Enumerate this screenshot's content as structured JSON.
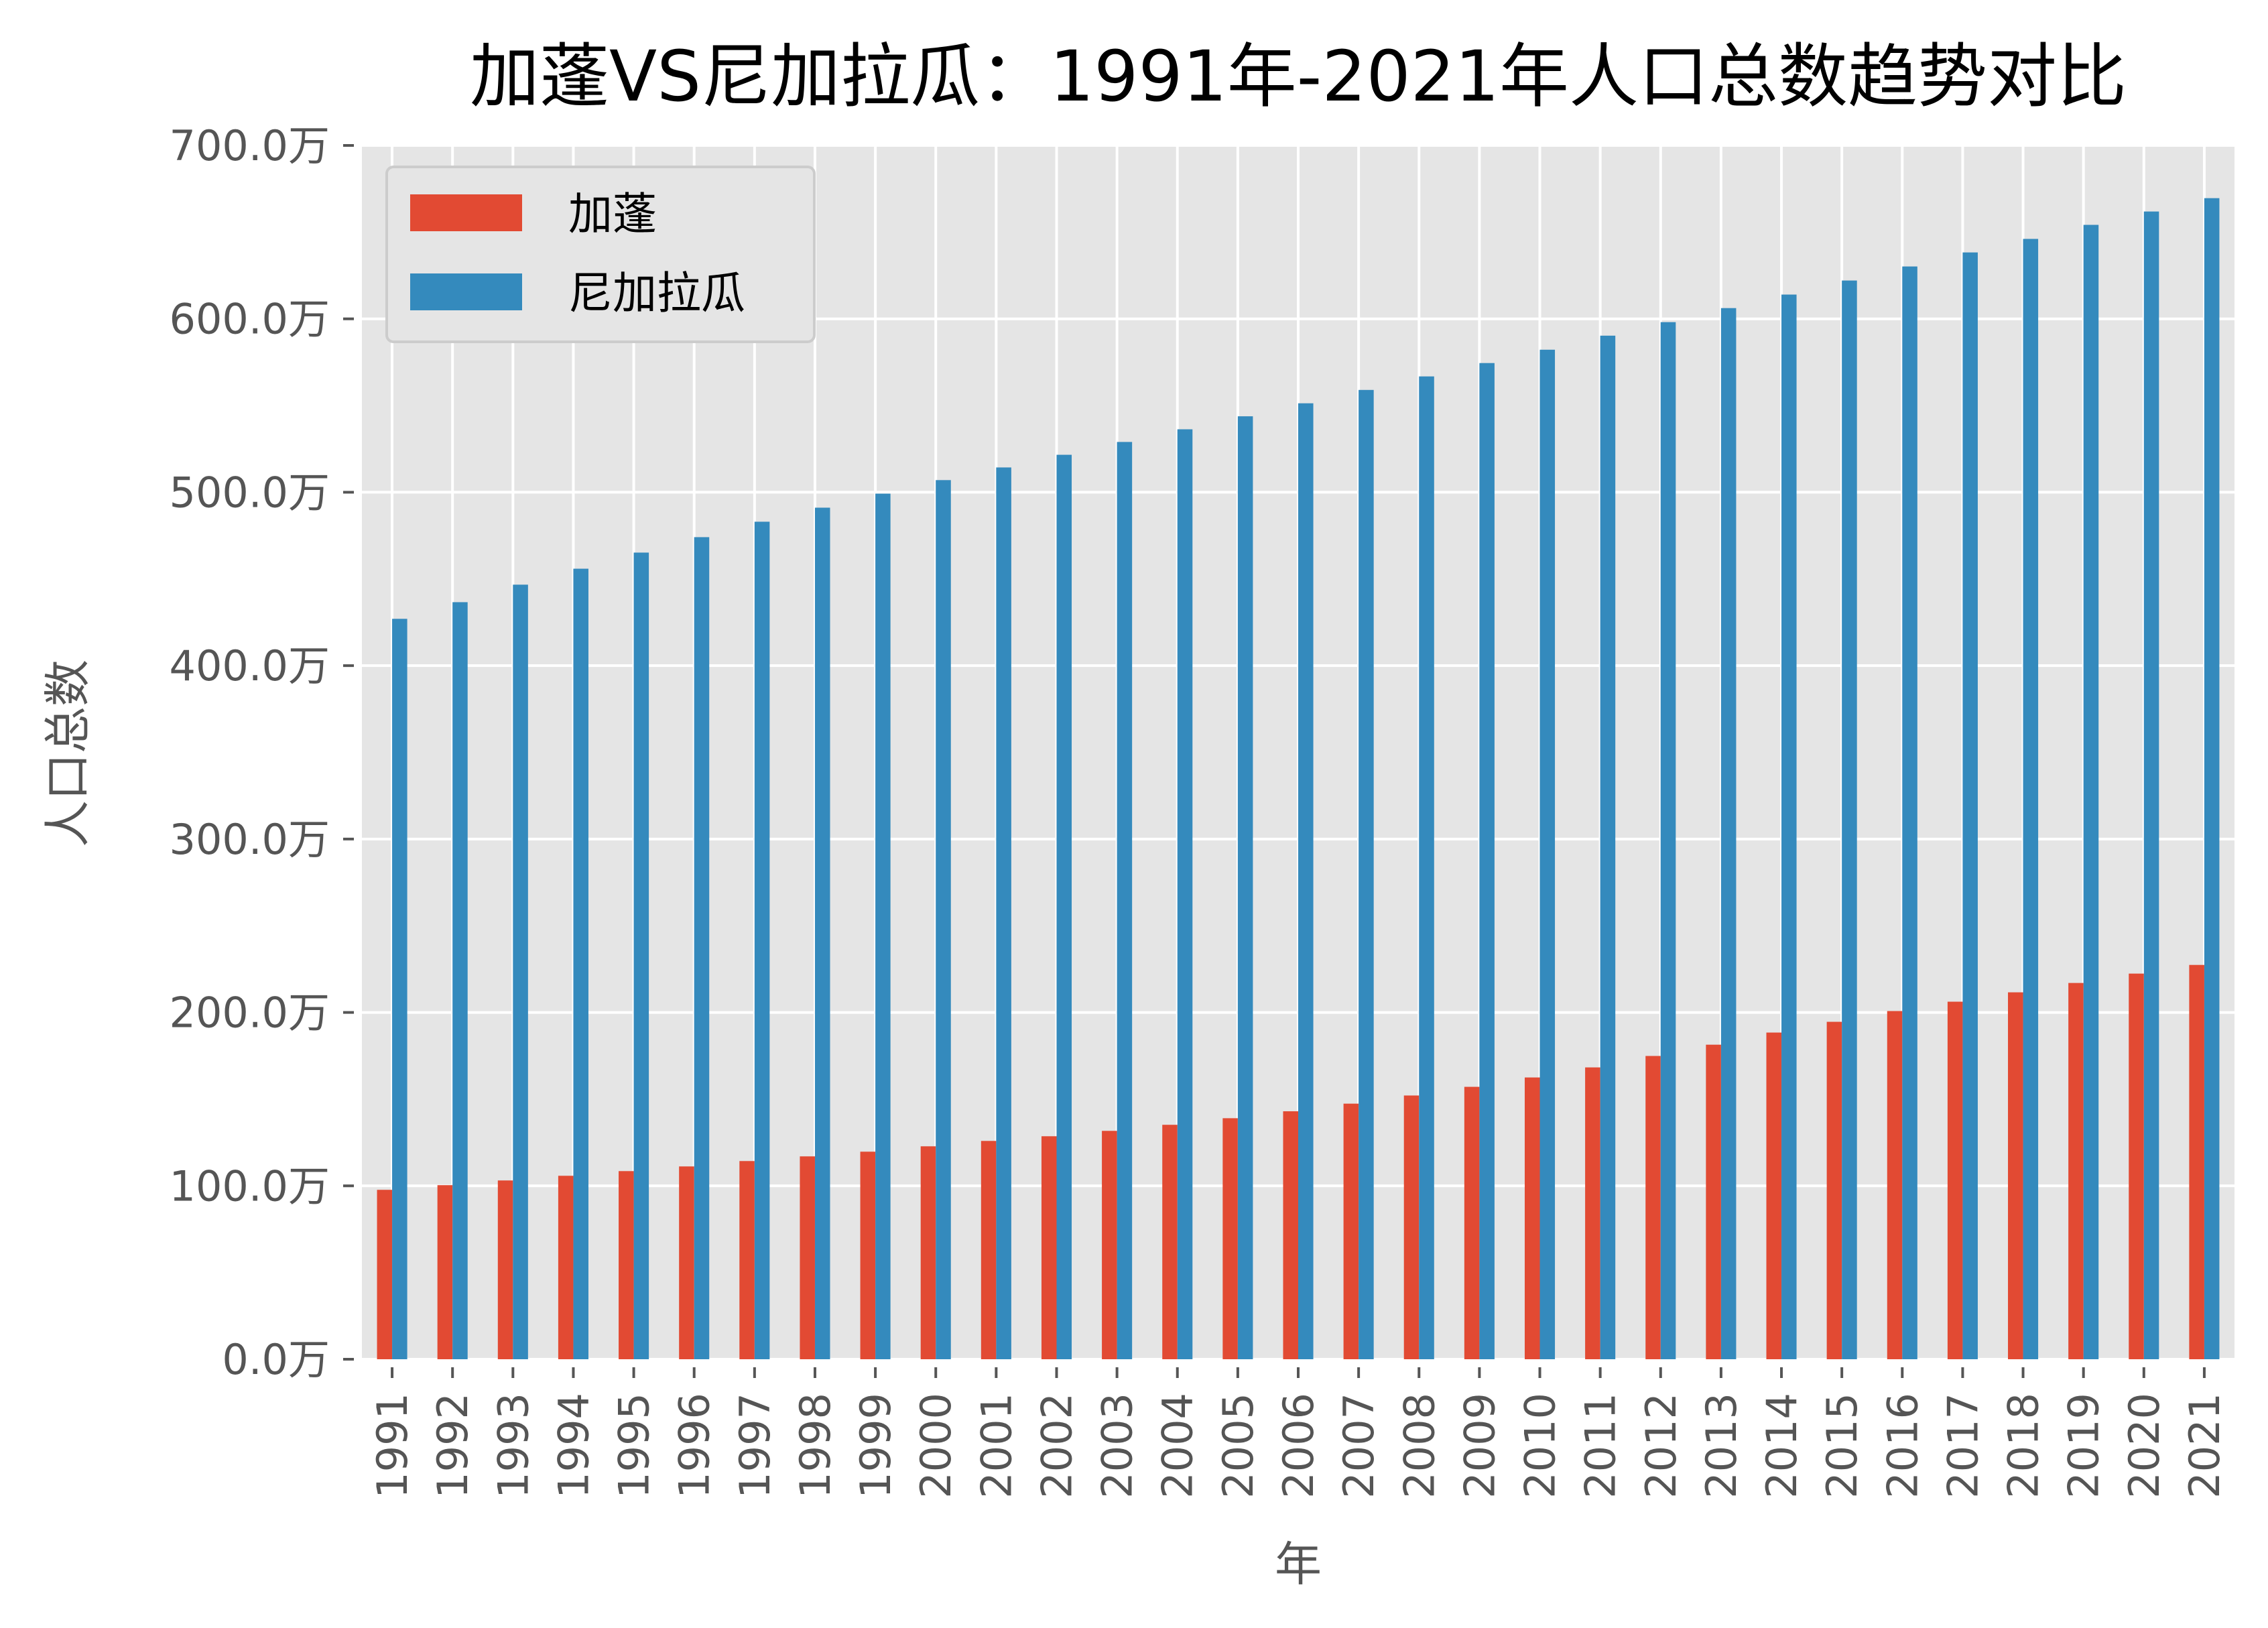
{
  "chart_data": {
    "type": "bar",
    "title": "加蓬VS尼加拉瓜：1991年-2021年人口总数趋势对比",
    "xlabel": "年",
    "ylabel": "人口总数",
    "ylim": [
      0,
      700
    ],
    "yticks": [
      "0.0万",
      "100.0万",
      "200.0万",
      "300.0万",
      "400.0万",
      "500.0万",
      "600.0万",
      "700.0万"
    ],
    "ytick_values": [
      0,
      100,
      200,
      300,
      400,
      500,
      600,
      700
    ],
    "grid": true,
    "legend_position": "top-left",
    "categories": [
      "1991",
      "1992",
      "1993",
      "1994",
      "1995",
      "1996",
      "1997",
      "1998",
      "1999",
      "2000",
      "2001",
      "2002",
      "2003",
      "2004",
      "2005",
      "2006",
      "2007",
      "2008",
      "2009",
      "2010",
      "2011",
      "2012",
      "2013",
      "2014",
      "2015",
      "2016",
      "2017",
      "2018",
      "2019",
      "2020",
      "2021"
    ],
    "series": [
      {
        "name": "加蓬",
        "color": "#E24A33",
        "values": [
          97.7,
          100.4,
          103.1,
          105.8,
          108.5,
          111.2,
          114.3,
          117.0,
          119.7,
          122.8,
          125.9,
          128.6,
          131.7,
          135.2,
          139.0,
          143.0,
          147.4,
          152.1,
          157.1,
          162.5,
          168.3,
          174.9,
          181.4,
          188.4,
          194.6,
          200.8,
          206.2,
          211.6,
          217.0,
          222.4,
          227.4
        ]
      },
      {
        "name": "尼加拉瓜",
        "color": "#348ABD",
        "values": [
          427.0,
          436.6,
          446.7,
          455.9,
          465.2,
          474.1,
          483.0,
          491.1,
          499.2,
          507.0,
          514.3,
          521.6,
          529.0,
          536.3,
          543.8,
          551.3,
          559.0,
          566.8,
          574.5,
          582.2,
          590.3,
          598.1,
          606.2,
          614.0,
          622.1,
          630.2,
          638.3,
          646.1,
          654.2,
          661.9,
          669.6
        ]
      }
    ],
    "plot_background": "#E5E5E5",
    "grid_color": "#FFFFFF"
  }
}
